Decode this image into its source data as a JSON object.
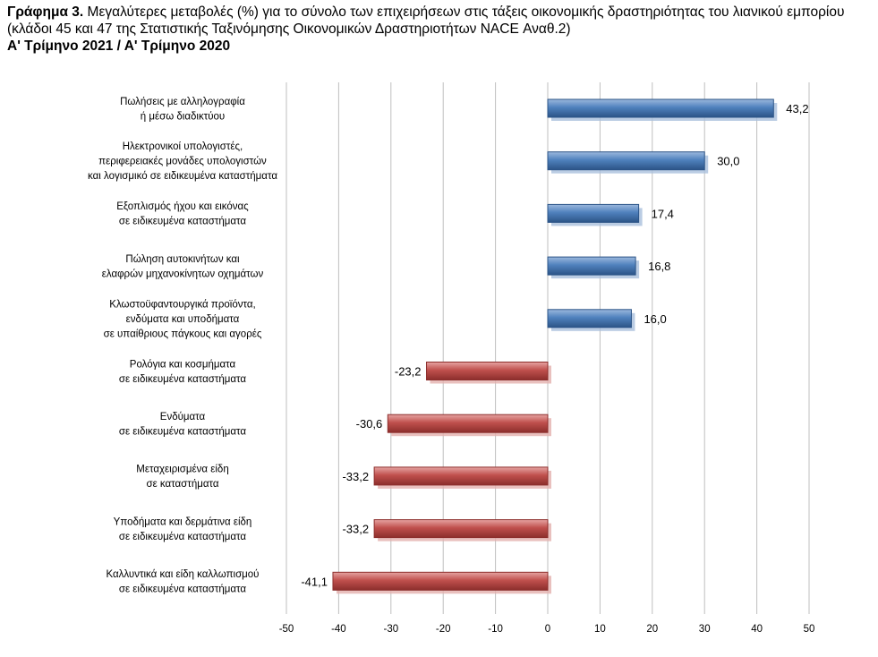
{
  "title": {
    "prefix": "Γράφημα 3.",
    "text": " Μεγαλύτερες μεταβολές (%) για το σύνολο των επιχειρήσεων στις τάξεις οικονομικής δραστηριότητας του λιανικού εμπορίου (κλάδοι 45 και 47 της Στατιστικής Ταξινόμησης Οικονομικών Δραστηριοτήτων NACE Αναθ.2)",
    "subtitle": "Α' Τρίμηνο 2021 / Α' Τρίμηνο 2020"
  },
  "colors": {
    "positive": "#4f81bd",
    "negative": "#c0504d",
    "grid": "#bfbfbf"
  },
  "chart_data": {
    "type": "bar",
    "orientation": "horizontal",
    "categories": [
      [
        "Πωλήσεις με αλληλογραφία",
        "ή μέσω διαδικτύου"
      ],
      [
        "Ηλεκτρονικοί υπολογιστές,",
        "περιφερειακές μονάδες υπολογιστών",
        "και λογισμικό σε ειδικευμένα καταστήματα"
      ],
      [
        "Εξοπλισμός ήχου και εικόνας",
        "σε ειδικευμένα καταστήματα"
      ],
      [
        "Πώληση αυτοκινήτων και",
        "ελαφρών μηχανοκίνητων οχημάτων"
      ],
      [
        "Κλωστοϋφαντουργικά προϊόντα,",
        "ενδύματα και υποδήματα",
        "σε υπαίθριους πάγκους και αγορές"
      ],
      [
        "Ρολόγια και κοσμήματα",
        "σε ειδικευμένα καταστήματα"
      ],
      [
        "Ενδύματα",
        "σε ειδικευμένα καταστήματα"
      ],
      [
        "Μεταχειρισμένα είδη",
        "σε καταστήματα"
      ],
      [
        "Υποδήματα και δερμάτινα είδη",
        "σε ειδικευμένα καταστήματα"
      ],
      [
        "Καλλυντικά και είδη καλλωπισμού",
        "σε ειδικευμένα καταστήματα"
      ]
    ],
    "values": [
      43.2,
      30.0,
      17.4,
      16.8,
      16.0,
      -23.2,
      -30.6,
      -33.2,
      -33.2,
      -41.1
    ],
    "data_labels": [
      "43,2",
      "30,0",
      "17,4",
      "16,8",
      "16,0",
      "-23,2",
      "-30,6",
      "-33,2",
      "-33,2",
      "-41,1"
    ],
    "xlim": [
      -50,
      50
    ],
    "xticks": [
      -50,
      -40,
      -30,
      -20,
      -10,
      0,
      10,
      20,
      30,
      40,
      50
    ],
    "xtick_labels": [
      "-50",
      "-40",
      "-30",
      "-20",
      "-10",
      "0",
      "10",
      "20",
      "30",
      "40",
      "50"
    ],
    "grid": true,
    "legend": "none"
  }
}
